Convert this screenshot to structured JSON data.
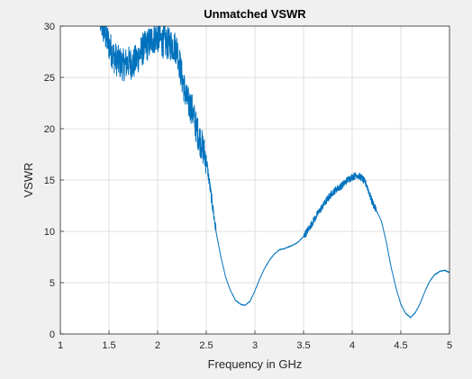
{
  "chart_data": {
    "type": "line",
    "title": "Unmatched VSWR",
    "xlabel": "Frequency in GHz",
    "ylabel": "VSWR",
    "xlim": [
      1,
      5
    ],
    "ylim": [
      0,
      30
    ],
    "x_ticks": [
      "1",
      "1.5",
      "2",
      "2.5",
      "3",
      "3.5",
      "4",
      "4.5",
      "5"
    ],
    "y_ticks": [
      "0",
      "5",
      "10",
      "15",
      "20",
      "25",
      "30"
    ],
    "grid": true,
    "legend": "none",
    "series": [
      {
        "color": "#0072bd",
        "noisy": true,
        "x": [
          1.4,
          1.45,
          1.5,
          1.55,
          1.6,
          1.65,
          1.7,
          1.75,
          1.8,
          1.85,
          1.9,
          1.95,
          2.0,
          2.05,
          2.1,
          2.15,
          2.2,
          2.25,
          2.3,
          2.35,
          2.4,
          2.45,
          2.5,
          2.55,
          2.6,
          2.65,
          2.7,
          2.75,
          2.8,
          2.85,
          2.9,
          2.95,
          3.0,
          3.05,
          3.1,
          3.15,
          3.2,
          3.25,
          3.3,
          3.35,
          3.4,
          3.45,
          3.5,
          3.55,
          3.6,
          3.65,
          3.7,
          3.75,
          3.8,
          3.85,
          3.9,
          3.95,
          4.0,
          4.05,
          4.1,
          4.15,
          4.2,
          4.25,
          4.3,
          4.35,
          4.4,
          4.45,
          4.5,
          4.55,
          4.6,
          4.65,
          4.7,
          4.75,
          4.8,
          4.85,
          4.9,
          4.95,
          5.0
        ],
        "values": [
          31.0,
          29.5,
          28.2,
          27.0,
          26.5,
          26.2,
          26.5,
          26.3,
          27.0,
          27.8,
          28.2,
          28.8,
          29.0,
          28.5,
          28.3,
          28.2,
          27.8,
          25.0,
          22.8,
          22.0,
          20.0,
          18.5,
          17.0,
          13.5,
          10.0,
          7.5,
          5.5,
          4.2,
          3.3,
          2.9,
          2.8,
          3.2,
          4.2,
          5.4,
          6.4,
          7.2,
          7.8,
          8.2,
          8.3,
          8.5,
          8.7,
          9.0,
          9.5,
          10.2,
          11.0,
          11.8,
          12.5,
          13.2,
          13.8,
          14.2,
          14.5,
          15.0,
          15.3,
          15.5,
          15.2,
          14.5,
          13.0,
          12.0,
          11.0,
          9.0,
          6.5,
          4.5,
          2.9,
          2.0,
          1.6,
          2.1,
          3.0,
          4.2,
          5.2,
          5.8,
          6.1,
          6.2,
          6.0
        ]
      }
    ]
  }
}
